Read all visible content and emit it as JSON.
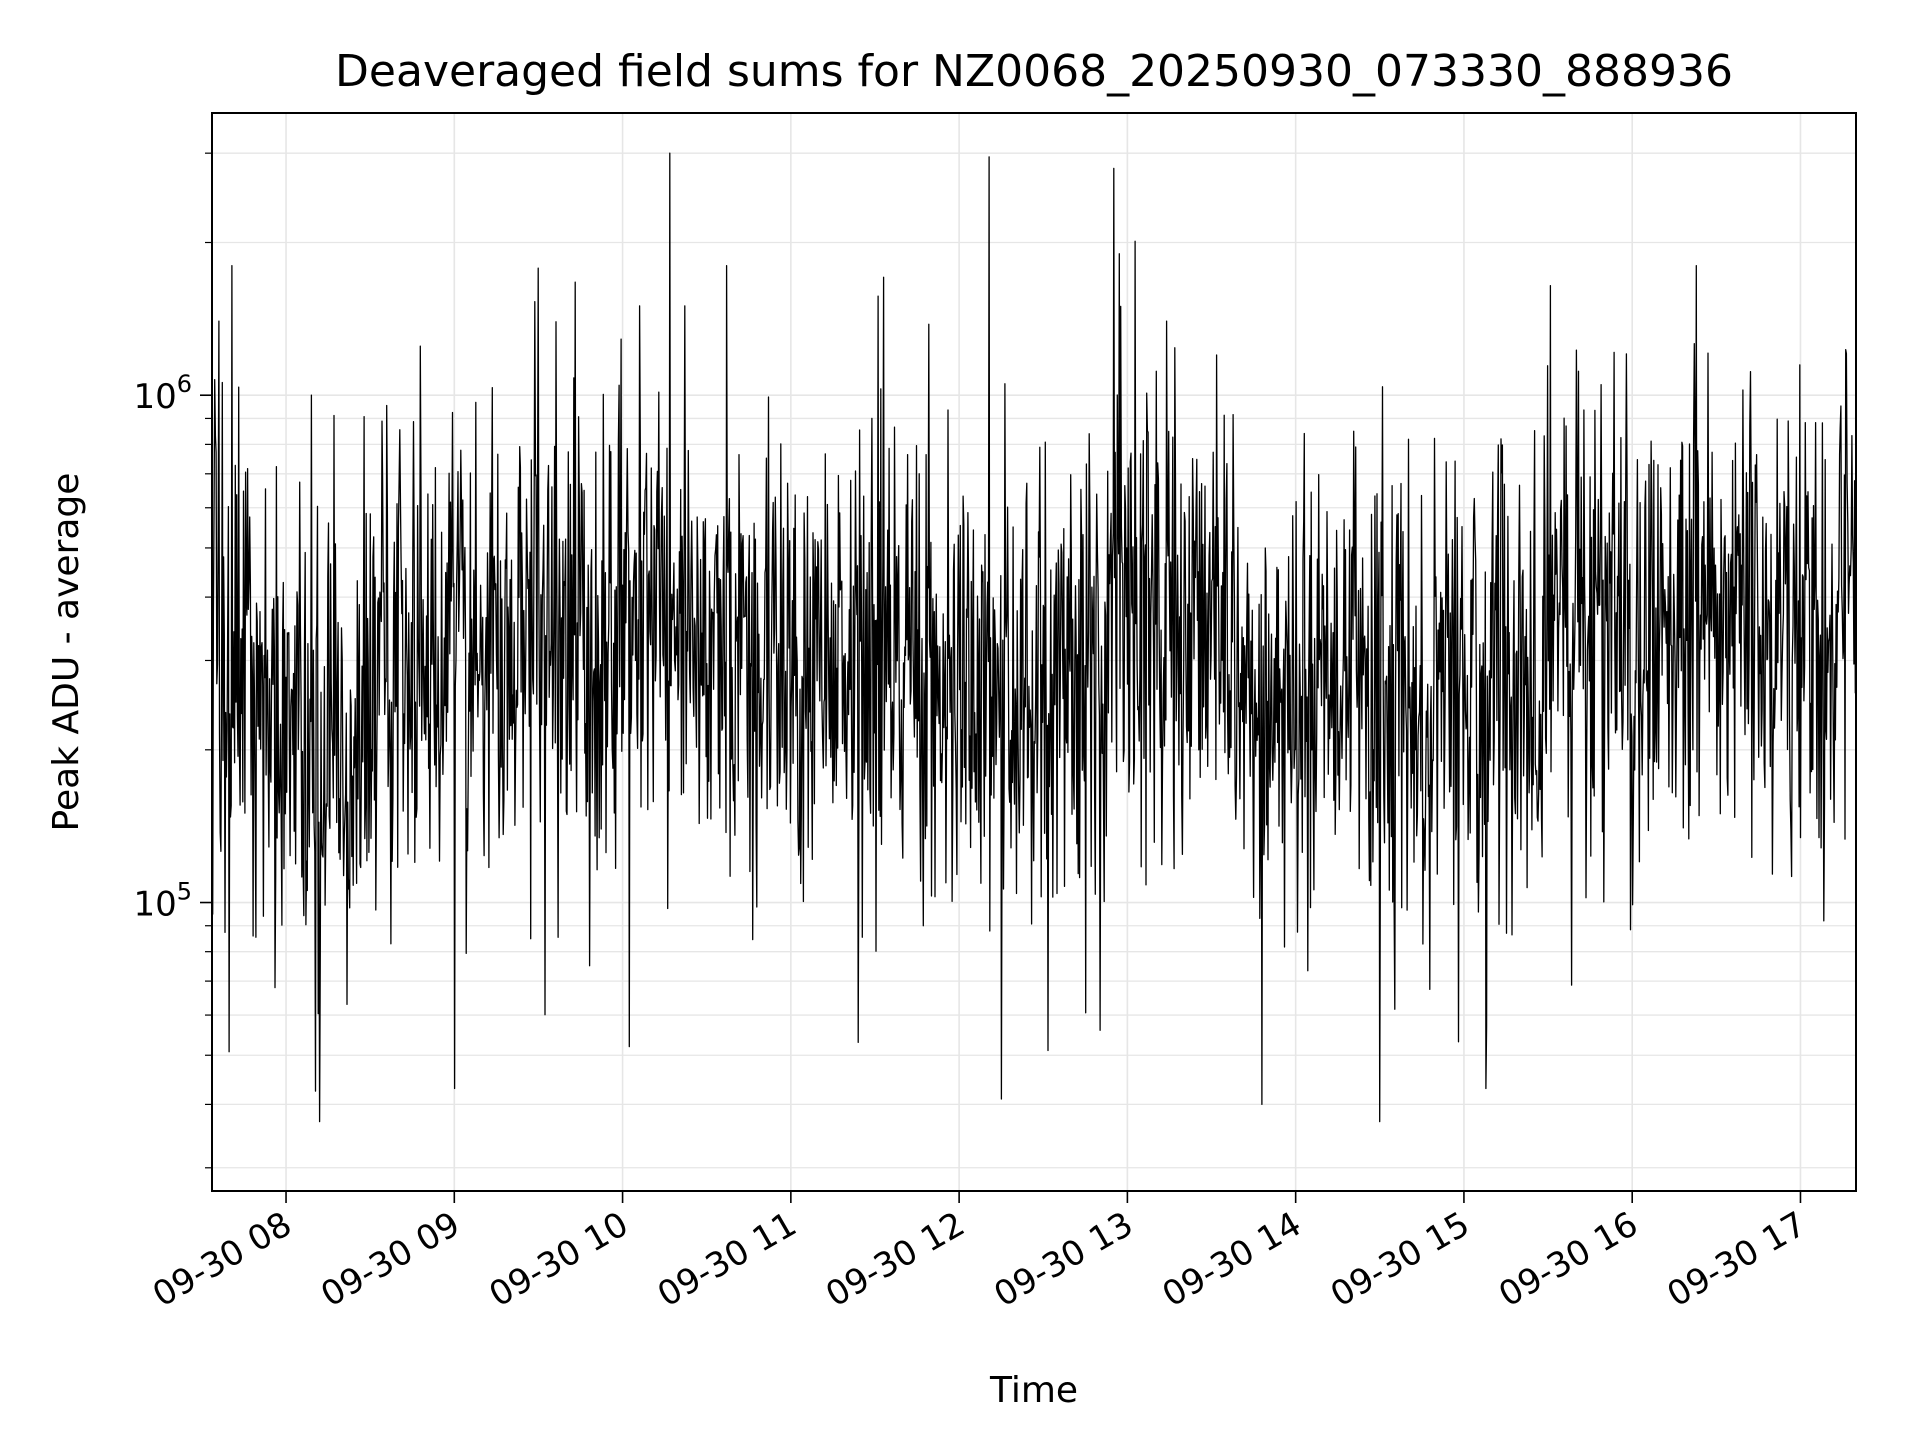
{
  "chart_data": {
    "type": "line",
    "title": "Deaveraged field sums for NZ0068_20250930_073330_888936",
    "xlabel": "Time",
    "ylabel": "Peak ADU - average",
    "yscale": "log",
    "ylim": [
      27000,
      3600000
    ],
    "xlim_hours": [
      7.56,
      17.33
    ],
    "x_ticks": [
      {
        "hour": 8,
        "label": "09-30 08"
      },
      {
        "hour": 9,
        "label": "09-30 09"
      },
      {
        "hour": 10,
        "label": "09-30 10"
      },
      {
        "hour": 11,
        "label": "09-30 11"
      },
      {
        "hour": 12,
        "label": "09-30 12"
      },
      {
        "hour": 13,
        "label": "09-30 13"
      },
      {
        "hour": 14,
        "label": "09-30 14"
      },
      {
        "hour": 15,
        "label": "09-30 15"
      },
      {
        "hour": 16,
        "label": "09-30 16"
      },
      {
        "hour": 17,
        "label": "09-30 17"
      }
    ],
    "y_ticks": [
      {
        "value": 100000,
        "base": "10",
        "exp": "5"
      },
      {
        "value": 1000000,
        "base": "10",
        "exp": "6"
      }
    ],
    "grid": true,
    "line_color": "#000000",
    "grid_color": "#e6e6e6",
    "series": [
      {
        "name": "Peak ADU - average",
        "baseline": [
          [
            7.56,
            300000
          ],
          [
            7.8,
            250000
          ],
          [
            8.1,
            180000
          ],
          [
            8.4,
            240000
          ],
          [
            8.7,
            330000
          ],
          [
            9.0,
            280000
          ],
          [
            9.5,
            330000
          ],
          [
            10.0,
            330000
          ],
          [
            10.4,
            350000
          ],
          [
            10.8,
            330000
          ],
          [
            11.2,
            280000
          ],
          [
            11.6,
            330000
          ],
          [
            12.0,
            250000
          ],
          [
            12.4,
            220000
          ],
          [
            12.8,
            330000
          ],
          [
            13.0,
            400000
          ],
          [
            13.4,
            380000
          ],
          [
            13.8,
            270000
          ],
          [
            14.3,
            250000
          ],
          [
            14.7,
            230000
          ],
          [
            15.2,
            260000
          ],
          [
            15.6,
            330000
          ],
          [
            16.0,
            340000
          ],
          [
            16.5,
            380000
          ],
          [
            16.9,
            340000
          ],
          [
            17.15,
            300000
          ],
          [
            17.33,
            550000
          ]
        ],
        "spikes": [
          [
            7.6,
            1400000
          ],
          [
            7.68,
            1800000
          ],
          [
            8.15,
            1000000
          ],
          [
            8.2,
            37000
          ],
          [
            8.8,
            1250000
          ],
          [
            9.0,
            43000
          ],
          [
            9.5,
            1780000
          ],
          [
            9.72,
            1670000
          ],
          [
            10.04,
            52000
          ],
          [
            10.1,
            1500000
          ],
          [
            10.28,
            3000000
          ],
          [
            10.37,
            1500000
          ],
          [
            10.62,
            1800000
          ],
          [
            11.4,
            53000
          ],
          [
            11.82,
            1380000
          ],
          [
            12.18,
            2950000
          ],
          [
            12.25,
            41000
          ],
          [
            12.84,
            56000
          ],
          [
            12.92,
            2800000
          ],
          [
            12.95,
            1900000
          ],
          [
            13.28,
            1240000
          ],
          [
            13.53,
            1200000
          ],
          [
            13.8,
            40000
          ],
          [
            14.5,
            37000
          ],
          [
            15.13,
            43000
          ],
          [
            15.22,
            820000
          ],
          [
            16.38,
            1800000
          ],
          [
            17.14,
            92000
          ],
          [
            17.27,
            1230000
          ]
        ]
      }
    ]
  }
}
